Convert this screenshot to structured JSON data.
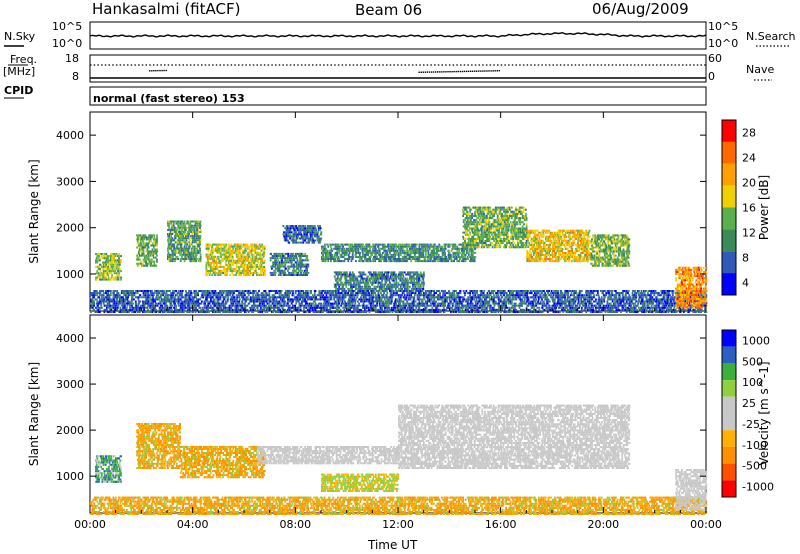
{
  "header": {
    "station": "Hankasalmi (fitACF)",
    "beam": "Beam 06",
    "date": "06/Aug/2009"
  },
  "top_panels": {
    "nsky_label": "N.Sky",
    "nsearch_label": "N.Search",
    "noise_ticks": [
      "10^5",
      "10^0"
    ],
    "freq_label": "Freq.",
    "freq_unit": "[MHz]",
    "freq_ticks": [
      "18",
      "8"
    ],
    "nave_label": "Nave",
    "nave_ticks": [
      "60",
      "0"
    ],
    "cpid_label": "CPID",
    "cpid_value": "normal (fast stereo) 153"
  },
  "colors": {
    "power_scale": [
      "#0000ff",
      "#2e5bb8",
      "#3a8a5a",
      "#5ab04a",
      "#f0d000",
      "#ffa000",
      "#ff6a00",
      "#ff0000"
    ],
    "velocity_scale": [
      "#ff0000",
      "#ff5000",
      "#ff9000",
      "#ffb000",
      "#c8c8c8",
      "#c8c8c8",
      "#90d040",
      "#3cb03c",
      "#2c60c0",
      "#0000ff"
    ],
    "ground_scatter": "#c8c8c8"
  },
  "chart_data": [
    {
      "type": "heatmap",
      "panel": "power",
      "ylabel": "Slant Range [km]",
      "xlabel": "",
      "y_ticks": [
        "1000",
        "2000",
        "3000",
        "4000"
      ],
      "ylim": [
        200,
        4500
      ],
      "x_ticks": [
        "00:00",
        "04:00",
        "08:00",
        "12:00",
        "16:00",
        "20:00",
        "00:00"
      ],
      "xlim_hours": [
        0,
        24
      ],
      "colorbar": {
        "label": "Power [dB]",
        "ticks": [
          "28",
          "24",
          "20",
          "16",
          "12",
          "8",
          "4"
        ],
        "range": [
          0,
          30
        ]
      },
      "features": [
        {
          "t0": 0.0,
          "t1": 24.0,
          "r0": 200,
          "r1": 700,
          "level": 6
        },
        {
          "t0": 0.2,
          "t1": 1.2,
          "r0": 900,
          "r1": 1500,
          "level": 14
        },
        {
          "t0": 1.8,
          "t1": 2.6,
          "r0": 1200,
          "r1": 1900,
          "level": 12
        },
        {
          "t0": 3.0,
          "t1": 4.3,
          "r0": 1300,
          "r1": 2200,
          "level": 11
        },
        {
          "t0": 4.5,
          "t1": 6.8,
          "r0": 1000,
          "r1": 1700,
          "level": 16
        },
        {
          "t0": 7.0,
          "t1": 8.5,
          "r0": 1000,
          "r1": 1500,
          "level": 8
        },
        {
          "t0": 7.5,
          "t1": 9.0,
          "r0": 1700,
          "r1": 2100,
          "level": 7
        },
        {
          "t0": 9.0,
          "t1": 15.0,
          "r0": 1300,
          "r1": 1700,
          "level": 9
        },
        {
          "t0": 9.5,
          "t1": 13.0,
          "r0": 700,
          "r1": 1100,
          "level": 8
        },
        {
          "t0": 14.5,
          "t1": 17.0,
          "r0": 1600,
          "r1": 2500,
          "level": 12
        },
        {
          "t0": 17.0,
          "t1": 19.5,
          "r0": 1300,
          "r1": 2000,
          "level": 18
        },
        {
          "t0": 19.5,
          "t1": 21.0,
          "r0": 1200,
          "r1": 1900,
          "level": 13
        },
        {
          "t0": 22.8,
          "t1": 24.0,
          "r0": 300,
          "r1": 1200,
          "level": 22
        }
      ]
    },
    {
      "type": "heatmap",
      "panel": "velocity",
      "ylabel": "Slant Range [km]",
      "xlabel": "Time UT",
      "y_ticks": [
        "1000",
        "2000",
        "3000",
        "4000"
      ],
      "ylim": [
        200,
        4500
      ],
      "x_ticks": [
        "00:00",
        "04:00",
        "08:00",
        "12:00",
        "16:00",
        "20:00",
        "00:00"
      ],
      "xlim_hours": [
        0,
        24
      ],
      "colorbar": {
        "label": "Velocity [m s^-1]",
        "ticks": [
          "1000",
          "500",
          "100",
          "25",
          "-25",
          "-100",
          "-500",
          "-1000"
        ],
        "range": [
          -1000,
          1000
        ]
      },
      "features": [
        {
          "t0": 0.0,
          "t1": 24.0,
          "r0": 200,
          "r1": 600,
          "level": 2
        },
        {
          "t0": 0.2,
          "t1": 1.2,
          "r0": 900,
          "r1": 1500,
          "level": 3
        },
        {
          "t0": 1.8,
          "t1": 3.5,
          "r0": 1200,
          "r1": 2200,
          "level": 2
        },
        {
          "t0": 3.5,
          "t1": 6.8,
          "r0": 1000,
          "r1": 1700,
          "level": 2
        },
        {
          "t0": 6.5,
          "t1": 12.0,
          "r0": 1300,
          "r1": 1700,
          "level": 0
        },
        {
          "t0": 9.0,
          "t1": 12.0,
          "r0": 700,
          "r1": 1100,
          "level": 4
        },
        {
          "t0": 12.0,
          "t1": 21.0,
          "r0": 1200,
          "r1": 2600,
          "level": 0
        },
        {
          "t0": 22.8,
          "t1": 24.0,
          "r0": 300,
          "r1": 1200,
          "level": 0
        }
      ]
    }
  ]
}
